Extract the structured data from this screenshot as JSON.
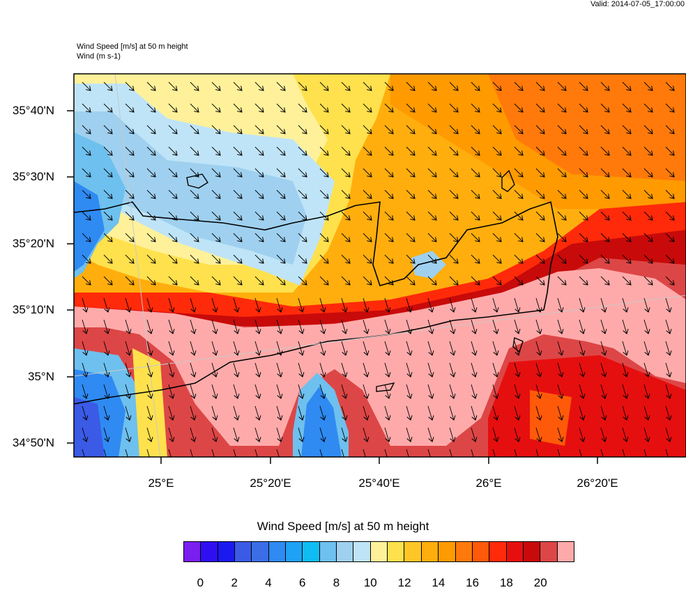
{
  "header": {
    "valid": "Valid: 2014-07-05_17:00:00",
    "line1": "Wind Speed [m/s] at 50 m height",
    "line2": "Wind    (m s-1)"
  },
  "map": {
    "lat_labels": [
      "35°40'N",
      "35°30'N",
      "35°20'N",
      "35°10'N",
      "35°N",
      "34°50'N"
    ],
    "lon_labels": [
      "25°E",
      "25°20'E",
      "25°40'E",
      "26°E",
      "26°20'E"
    ],
    "wind_direction": "north-northwest to south-southeast (arrows pointing toward south-southeast)"
  },
  "legend": {
    "title": "Wind Speed [m/s] at 50 m height",
    "tick_labels": [
      "0",
      "2",
      "4",
      "6",
      "8",
      "10",
      "12",
      "14",
      "16",
      "18",
      "20"
    ],
    "colors": [
      "#7a1ff0",
      "#2f0ff2",
      "#1a1af0",
      "#3b5ae6",
      "#3b6ee6",
      "#2f8af2",
      "#1ea2f5",
      "#0fbdf5",
      "#6ec0ee",
      "#9fd0ef",
      "#bfe4f7",
      "#fff19a",
      "#ffe14d",
      "#ffc626",
      "#ffae0d",
      "#ff9a00",
      "#ff7a0a",
      "#ff5a0a",
      "#ff2a0a",
      "#e60f0f",
      "#c80a0a",
      "#dd4646",
      "#ffaaaa"
    ]
  }
}
